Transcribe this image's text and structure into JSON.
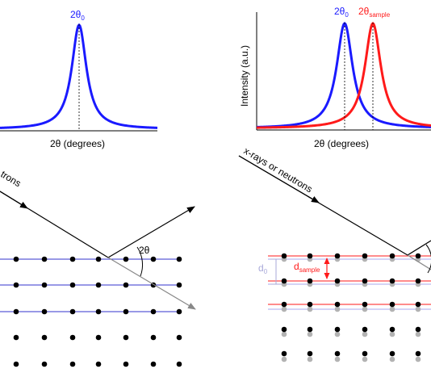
{
  "left_panel": {
    "peak_label_main": "2θ",
    "peak_label_sub": "0",
    "x_axis_label": "2θ (degrees)",
    "beam_label": "trons",
    "angle_label": "2θ"
  },
  "right_panel": {
    "peak0_label_main": "2θ",
    "peak0_label_sub": "0",
    "peak_sample_label_main": "2θ",
    "peak_sample_label_sub": "sample",
    "y_axis_label": "Intensity (a.u.)",
    "x_axis_label": "2θ (degrees)",
    "beam_label": "x-rays or neutrons",
    "d0_label_main": "d",
    "d0_label_sub": "0",
    "dsample_label_main": "d",
    "dsample_label_sub": "sample"
  },
  "colors": {
    "reference_peak": "#1a1aff",
    "sample_peak": "#ff1a1a",
    "shifted_atoms": "#b3b3b3",
    "atoms": "#000000",
    "transmitted_beam": "#888888",
    "d0_bracket": "#a9a9d9"
  }
}
